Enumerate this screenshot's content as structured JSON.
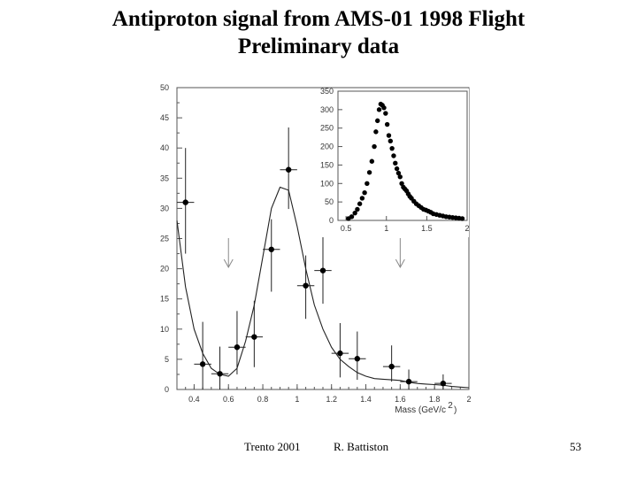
{
  "slide": {
    "title_line1": "Antiproton signal from AMS-01 1998 Flight",
    "title_line2": "Preliminary data",
    "footer_event": "Trento   2001",
    "footer_author": "R. Battiston",
    "page_number": "53"
  },
  "chart_data": [
    {
      "type": "scatter",
      "title": "",
      "xlabel": "Mass (GeV/c",
      "xlabel_superscript": "2",
      "xlabel_close": ")",
      "ylabel": "",
      "xlim": [
        0.3,
        2.0
      ],
      "ylim": [
        0,
        50
      ],
      "x_ticks": [
        0.4,
        0.6,
        0.8,
        1,
        1.2,
        1.4,
        1.6,
        1.8,
        2
      ],
      "x_tick_labels": [
        "0.4",
        "0.6",
        "0.8",
        "1",
        "1.2",
        "1.4",
        "1.6",
        "1.8",
        "2"
      ],
      "y_ticks": [
        0,
        5,
        10,
        15,
        20,
        25,
        30,
        35,
        40,
        45,
        50
      ],
      "y_tick_labels": [
        "0",
        "5",
        "10",
        "15",
        "20",
        "25",
        "30",
        "35",
        "40",
        "45",
        "50"
      ],
      "points": [
        {
          "x": 0.35,
          "y": 31,
          "y_err": [
            8.5,
            9
          ],
          "x_err": 0.05
        },
        {
          "x": 0.45,
          "y": 4.2,
          "y_err": [
            4.2,
            7
          ],
          "x_err": 0.05
        },
        {
          "x": 0.55,
          "y": 2.6,
          "y_err": [
            2.6,
            4.5
          ],
          "x_err": 0.05
        },
        {
          "x": 0.65,
          "y": 7,
          "y_err": [
            4.5,
            6
          ],
          "x_err": 0.05
        },
        {
          "x": 0.75,
          "y": 8.7,
          "y_err": [
            5,
            6
          ],
          "x_err": 0.05
        },
        {
          "x": 0.85,
          "y": 23.2,
          "y_err": [
            7,
            5
          ],
          "x_err": 0.05
        },
        {
          "x": 0.95,
          "y": 36.4,
          "y_err": [
            6.5,
            7
          ],
          "x_err": 0.05
        },
        {
          "x": 1.05,
          "y": 17.2,
          "y_err": [
            5.5,
            5
          ],
          "x_err": 0.05
        },
        {
          "x": 1.15,
          "y": 19.7,
          "y_err": [
            5.5,
            6
          ],
          "x_err": 0.05
        },
        {
          "x": 1.25,
          "y": 6,
          "y_err": [
            4,
            5
          ],
          "x_err": 0.05
        },
        {
          "x": 1.35,
          "y": 5.1,
          "y_err": [
            3.5,
            4.5
          ],
          "x_err": 0.05
        },
        {
          "x": 1.55,
          "y": 3.8,
          "y_err": [
            2.5,
            3.5
          ],
          "x_err": 0.05
        },
        {
          "x": 1.65,
          "y": 1.3,
          "y_err": [
            1.3,
            2
          ],
          "x_err": 0.05
        },
        {
          "x": 1.85,
          "y": 1,
          "y_err": [
            1,
            1.5
          ],
          "x_err": 0.05
        }
      ],
      "fit_curve": {
        "x": [
          0.3,
          0.35,
          0.4,
          0.45,
          0.5,
          0.55,
          0.6,
          0.65,
          0.7,
          0.75,
          0.8,
          0.85,
          0.9,
          0.95,
          1.0,
          1.05,
          1.1,
          1.15,
          1.2,
          1.25,
          1.3,
          1.35,
          1.4,
          1.45,
          1.5,
          1.55,
          1.6,
          1.65,
          1.7,
          1.75,
          1.8,
          1.85,
          1.9,
          1.95,
          2.0
        ],
        "y": [
          28,
          17,
          10,
          6,
          3.5,
          2.5,
          2.2,
          3.5,
          8,
          14,
          22,
          30,
          33.5,
          33,
          27,
          20,
          14,
          10,
          7,
          5,
          3.8,
          2.8,
          2.2,
          1.8,
          1.7,
          1.6,
          1.5,
          1.2,
          1.0,
          0.9,
          0.8,
          0.7,
          0.5,
          0.4,
          0.3
        ]
      },
      "arrows_x": [
        0.6,
        1.6
      ]
    },
    {
      "type": "scatter",
      "title": "",
      "xlim": [
        0.4,
        2.0
      ],
      "ylim": [
        0,
        350
      ],
      "x_ticks": [
        0.5,
        1,
        1.5,
        2
      ],
      "x_tick_labels": [
        "0.5",
        "1",
        "1.5",
        "2"
      ],
      "y_ticks": [
        0,
        50,
        100,
        150,
        200,
        250,
        300,
        350
      ],
      "y_tick_labels": [
        "0",
        "50",
        "100",
        "150",
        "200",
        "250",
        "300",
        "350"
      ],
      "points": [
        {
          "x": 0.53,
          "y": 5
        },
        {
          "x": 0.57,
          "y": 10
        },
        {
          "x": 0.61,
          "y": 20
        },
        {
          "x": 0.64,
          "y": 30
        },
        {
          "x": 0.67,
          "y": 45
        },
        {
          "x": 0.7,
          "y": 60
        },
        {
          "x": 0.73,
          "y": 75
        },
        {
          "x": 0.76,
          "y": 100
        },
        {
          "x": 0.79,
          "y": 130
        },
        {
          "x": 0.82,
          "y": 160
        },
        {
          "x": 0.85,
          "y": 200
        },
        {
          "x": 0.87,
          "y": 240
        },
        {
          "x": 0.89,
          "y": 270
        },
        {
          "x": 0.91,
          "y": 300
        },
        {
          "x": 0.93,
          "y": 315
        },
        {
          "x": 0.95,
          "y": 312
        },
        {
          "x": 0.97,
          "y": 305
        },
        {
          "x": 0.99,
          "y": 290
        },
        {
          "x": 1.01,
          "y": 260
        },
        {
          "x": 1.03,
          "y": 230
        },
        {
          "x": 1.05,
          "y": 215
        },
        {
          "x": 1.07,
          "y": 195
        },
        {
          "x": 1.09,
          "y": 175
        },
        {
          "x": 1.11,
          "y": 155
        },
        {
          "x": 1.13,
          "y": 140
        },
        {
          "x": 1.15,
          "y": 128
        },
        {
          "x": 1.17,
          "y": 118
        },
        {
          "x": 1.19,
          "y": 100
        },
        {
          "x": 1.21,
          "y": 90
        },
        {
          "x": 1.23,
          "y": 85
        },
        {
          "x": 1.25,
          "y": 80
        },
        {
          "x": 1.27,
          "y": 72
        },
        {
          "x": 1.29,
          "y": 65
        },
        {
          "x": 1.31,
          "y": 60
        },
        {
          "x": 1.34,
          "y": 52
        },
        {
          "x": 1.37,
          "y": 45
        },
        {
          "x": 1.4,
          "y": 40
        },
        {
          "x": 1.43,
          "y": 35
        },
        {
          "x": 1.46,
          "y": 30
        },
        {
          "x": 1.49,
          "y": 28
        },
        {
          "x": 1.52,
          "y": 25
        },
        {
          "x": 1.55,
          "y": 22
        },
        {
          "x": 1.58,
          "y": 18
        },
        {
          "x": 1.62,
          "y": 16
        },
        {
          "x": 1.66,
          "y": 14
        },
        {
          "x": 1.7,
          "y": 12
        },
        {
          "x": 1.74,
          "y": 10
        },
        {
          "x": 1.78,
          "y": 9
        },
        {
          "x": 1.82,
          "y": 8
        },
        {
          "x": 1.86,
          "y": 7
        },
        {
          "x": 1.9,
          "y": 6
        },
        {
          "x": 1.94,
          "y": 5
        }
      ]
    }
  ]
}
